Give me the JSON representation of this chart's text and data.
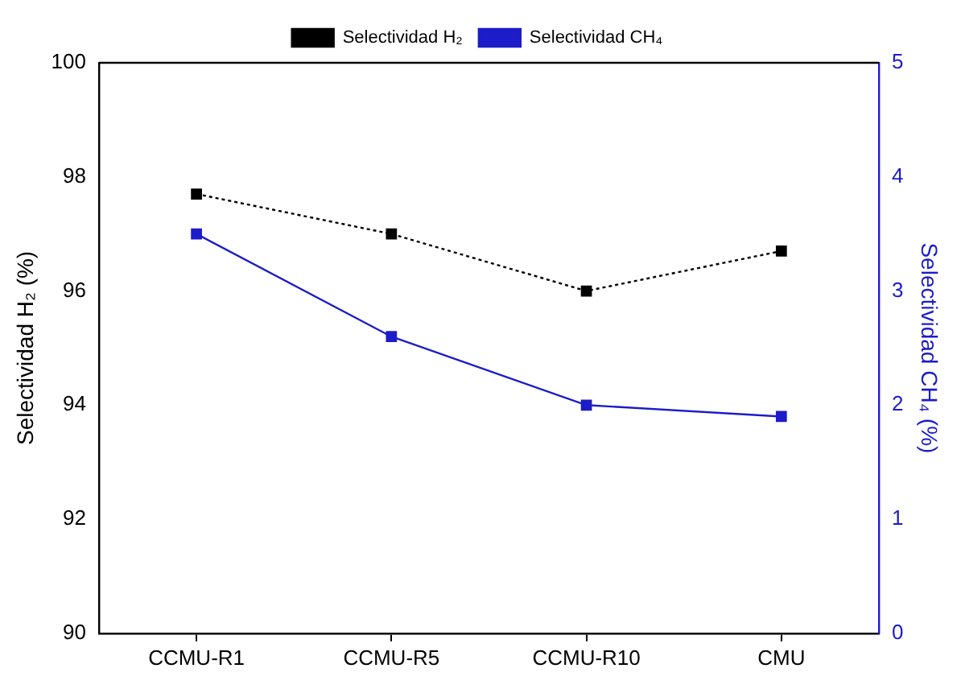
{
  "chart_data": {
    "type": "line",
    "categories": [
      "CCMU-R1",
      "CCMU-R5",
      "CCMU-R10",
      "CMU"
    ],
    "ylabel": "Selectividad H₂ (%)",
    "y2label": "Selectividad CH₄ (%)",
    "ylim": [
      90,
      100
    ],
    "yticks": [
      90,
      92,
      94,
      96,
      98,
      100
    ],
    "y2lim": [
      0,
      5
    ],
    "y2ticks": [
      0,
      1,
      2,
      3,
      4,
      5
    ],
    "series": [
      {
        "name": "Selectividad H₂",
        "color": "#000000",
        "values": [
          97.7,
          97.0,
          96.0,
          96.7
        ],
        "line_style": "dotted"
      },
      {
        "name": "Selectividad CH₄",
        "color": "#1c1cc8",
        "values": [
          3.5,
          2.6,
          2.0,
          1.9
        ],
        "axis": "y2",
        "line_style": "solid"
      }
    ],
    "marker": "square",
    "grid": false,
    "legend": "top"
  }
}
